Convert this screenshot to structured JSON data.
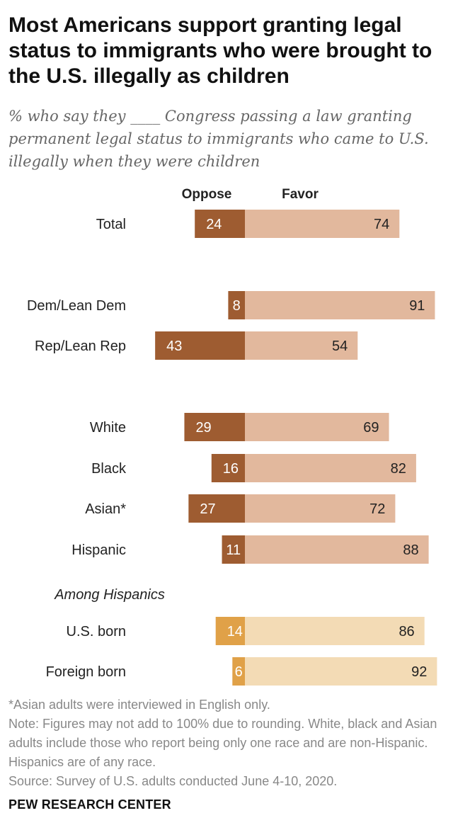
{
  "title": "Most Americans support granting legal status to immigrants who were brought to the U.S. illegally as children",
  "subtitle": "% who say they ____ Congress passing a law granting permanent legal status to immigrants who came to U.S. illegally when they were children",
  "chart_data": {
    "type": "bar",
    "orientation": "horizontal-diverging",
    "series": [
      {
        "name": "Oppose",
        "values": [
          24,
          8,
          43,
          29,
          16,
          27,
          11,
          14,
          6
        ]
      },
      {
        "name": "Favor",
        "values": [
          74,
          91,
          54,
          69,
          82,
          72,
          88,
          86,
          92
        ]
      }
    ],
    "rows": [
      {
        "label": "Total",
        "oppose": 24,
        "favor": 74,
        "group": "general"
      },
      {
        "label": "Dem/Lean Dem",
        "oppose": 8,
        "favor": 91,
        "group": "general"
      },
      {
        "label": "Rep/Lean Rep",
        "oppose": 43,
        "favor": 54,
        "group": "general"
      },
      {
        "label": "White",
        "oppose": 29,
        "favor": 69,
        "group": "general"
      },
      {
        "label": "Black",
        "oppose": 16,
        "favor": 82,
        "group": "general"
      },
      {
        "label": "Asian*",
        "oppose": 27,
        "favor": 72,
        "group": "general"
      },
      {
        "label": "Hispanic",
        "oppose": 11,
        "favor": 88,
        "group": "general"
      },
      {
        "label": "U.S. born",
        "oppose": 14,
        "favor": 86,
        "group": "hispanic"
      },
      {
        "label": "Foreign born",
        "oppose": 6,
        "favor": 92,
        "group": "hispanic"
      }
    ],
    "section_label": "Among Hispanics",
    "legend": [
      "Oppose",
      "Favor"
    ],
    "legend_position": "top",
    "colors": {
      "oppose": "#9e5c31",
      "favor": "#e2b89d",
      "oppose_hispanic": "#e0a148",
      "favor_hispanic": "#f3dbb5"
    }
  },
  "notes": {
    "asterisk": "*Asian adults were interviewed in English only.",
    "note": "Note: Figures may not add to 100% due to rounding. White, black and Asian adults include those who report being only one race and are non-Hispanic. Hispanics are of any race.",
    "source": "Source: Survey of U.S. adults conducted June 4-10, 2020."
  },
  "footer": "PEW RESEARCH CENTER"
}
